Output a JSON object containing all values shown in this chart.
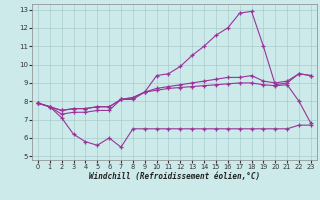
{
  "xlabel": "Windchill (Refroidissement éolien,°C)",
  "bg_color": "#cceaea",
  "grid_color": "#aacccc",
  "line_color": "#993399",
  "x_values": [
    0,
    1,
    2,
    3,
    4,
    5,
    6,
    7,
    8,
    9,
    10,
    11,
    12,
    13,
    14,
    15,
    16,
    17,
    18,
    19,
    20,
    21,
    22,
    23
  ],
  "line1": [
    7.9,
    7.7,
    7.1,
    6.2,
    5.8,
    5.6,
    6.0,
    5.5,
    6.5,
    6.5,
    6.5,
    6.5,
    6.5,
    6.5,
    6.5,
    6.5,
    6.5,
    6.5,
    6.5,
    6.5,
    6.5,
    6.5,
    6.7,
    6.7
  ],
  "line2": [
    7.9,
    7.7,
    7.3,
    7.4,
    7.4,
    7.5,
    7.5,
    8.1,
    8.1,
    8.5,
    9.4,
    9.5,
    9.9,
    10.5,
    11.0,
    11.6,
    12.0,
    12.8,
    12.9,
    11.0,
    8.9,
    9.0,
    9.5,
    9.4
  ],
  "line3": [
    7.9,
    7.7,
    7.5,
    7.6,
    7.6,
    7.7,
    7.7,
    8.1,
    8.2,
    8.5,
    8.7,
    8.8,
    8.9,
    9.0,
    9.1,
    9.2,
    9.3,
    9.3,
    9.4,
    9.1,
    9.0,
    9.1,
    9.5,
    9.4
  ],
  "line4": [
    7.9,
    7.7,
    7.5,
    7.6,
    7.6,
    7.7,
    7.7,
    8.1,
    8.2,
    8.5,
    8.6,
    8.7,
    8.75,
    8.8,
    8.85,
    8.9,
    8.95,
    9.0,
    9.0,
    8.9,
    8.85,
    8.9,
    8.0,
    6.8
  ],
  "ylim_min": 4.8,
  "ylim_max": 13.3,
  "yticks": [
    5,
    6,
    7,
    8,
    9,
    10,
    11,
    12,
    13
  ],
  "xticks": [
    0,
    1,
    2,
    3,
    4,
    5,
    6,
    7,
    8,
    9,
    10,
    11,
    12,
    13,
    14,
    15,
    16,
    17,
    18,
    19,
    20,
    21,
    22,
    23
  ]
}
